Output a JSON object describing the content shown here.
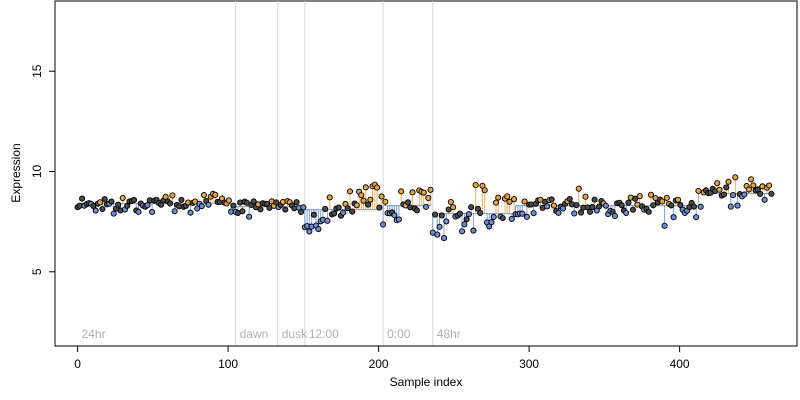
{
  "chart_data": {
    "type": "scatter",
    "title": "",
    "xlabel": "Sample index",
    "ylabel": "Expression",
    "xlim": [
      -15,
      478
    ],
    "ylim": [
      1.3,
      18.5
    ],
    "x_ticks": [
      0,
      100,
      200,
      300,
      400
    ],
    "y_ticks": [
      5,
      10,
      15
    ],
    "grid": false,
    "annotations": [
      {
        "x": 0,
        "label": "24hr"
      },
      {
        "x": 105,
        "label": "dawn"
      },
      {
        "x": 133,
        "label": "dusk"
      },
      {
        "x": 151,
        "label": "12:00"
      },
      {
        "x": 203,
        "label": "0:00"
      },
      {
        "x": 236,
        "label": "48hr"
      }
    ],
    "segments": [
      {
        "x_start": 0,
        "x_end": 104,
        "mean": 8.4,
        "trend": 0.002,
        "noise": 0.25,
        "color_above": "#e8a33d",
        "color_below": "#6a8fd6"
      },
      {
        "x_start": 105,
        "x_end": 150,
        "mean": 8.25,
        "trend": 0.004,
        "noise": 0.2,
        "color_above": "#e8a33d",
        "color_below": "#6a8fd6"
      },
      {
        "x_start": 151,
        "x_end": 202,
        "mean": 8.1,
        "trend": 0.035,
        "noise": 0.35,
        "color_above": "#e8a33d",
        "color_below": "#6a8fd6"
      },
      {
        "x_start": 203,
        "x_end": 235,
        "mean": 8.3,
        "trend": 0.04,
        "noise": 0.4,
        "color_above": "#e8a33d",
        "color_below": "#6a8fd6"
      },
      {
        "x_start": 236,
        "x_end": 290,
        "mean": 7.9,
        "trend": 0.015,
        "noise": 0.55,
        "color_above": "#e8a33d",
        "color_below": "#6a8fd6"
      },
      {
        "x_start": 291,
        "x_end": 415,
        "mean": 8.3,
        "trend": 0.001,
        "noise": 0.3,
        "color_above": "#e8a33d",
        "color_below": "#6a8fd6"
      },
      {
        "x_start": 416,
        "x_end": 462,
        "mean": 8.9,
        "trend": 0.004,
        "noise": 0.3,
        "color_above": "#e8a33d",
        "color_below": "#6a8fd6"
      }
    ],
    "point_fill_below": "#6a8fd6",
    "point_fill_above": "#e8a33d",
    "point_fill_neutral": "#4a4a4a"
  }
}
